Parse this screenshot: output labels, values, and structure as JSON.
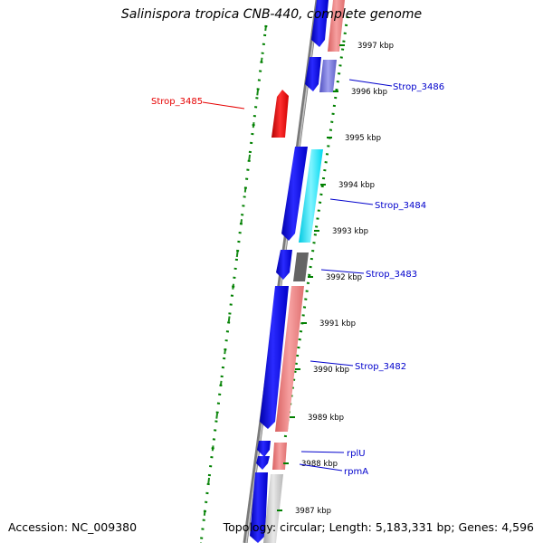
{
  "title": "Salinispora tropica CNB-440, complete genome",
  "footer": {
    "accession": "Accession: NC_009380",
    "topology": "Topology: circular; Length: 5,183,331 bp; Genes: 4,596"
  },
  "ticks": [
    "3997 kbp",
    "3996 kbp",
    "3995 kbp",
    "3994 kbp",
    "3993 kbp",
    "3992 kbp",
    "3991 kbp",
    "3990 kbp",
    "3989 kbp",
    "3988 kbp",
    "3987 kbp"
  ],
  "gene_labels": [
    {
      "id": "strop3485",
      "text": "Strop_3485",
      "color": "#e60000"
    },
    {
      "id": "strop3486",
      "text": "Strop_3486",
      "color": "#0000cc"
    },
    {
      "id": "strop3484",
      "text": "Strop_3484",
      "color": "#0000cc"
    },
    {
      "id": "strop3483",
      "text": "Strop_3483",
      "color": "#0000cc"
    },
    {
      "id": "strop3482",
      "text": "Strop_3482",
      "color": "#0000cc"
    },
    {
      "id": "rplu",
      "text": "rplU",
      "color": "#0000cc"
    },
    {
      "id": "rpma",
      "text": "rpmA",
      "color": "#0000cc"
    }
  ],
  "colors": {
    "forward_gene": "#0000ff",
    "reverse_gene": "#ff0000",
    "track_salmon": "#f08080",
    "track_cyan": "#00e5ff",
    "track_purple": "#7070d0",
    "track_gray": "#606060",
    "backbone": "#8a8a8a",
    "dotted_ring": "#008000"
  }
}
